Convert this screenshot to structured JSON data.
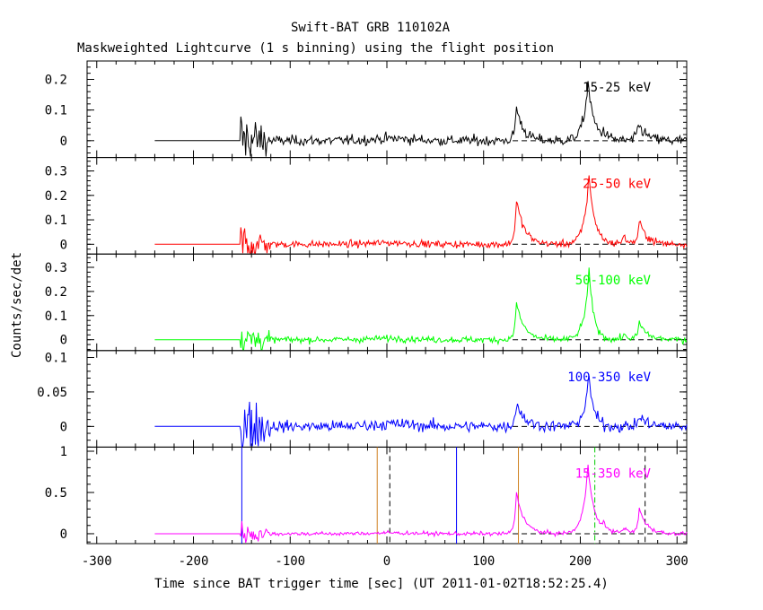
{
  "header": {
    "title": "Swift-BAT GRB 110102A",
    "subtitle": "Maskweighted Lightcurve (1 s binning) using the flight position"
  },
  "xlabel": "Time since BAT trigger time [sec] (UT 2011-01-02T18:52:25.4)",
  "ylabel": "Counts/sec/det",
  "chart_data": {
    "type": "line",
    "xlim": [
      -310,
      310
    ],
    "x_ticks": [
      "-300",
      "-200",
      "-100",
      "0",
      "100",
      "200",
      "300"
    ],
    "data_start": -240,
    "zero_baseline": "dashed from 130 to 310",
    "panels": [
      {
        "label": "15-25 keV",
        "color": "#000000",
        "ylim": [
          -0.055,
          0.26
        ],
        "y_ticks": [
          "0",
          "0.1",
          "0.2"
        ],
        "y_tick_values": [
          0,
          0.1,
          0.2
        ],
        "noise": 0.014,
        "peaks": [
          {
            "t": 134,
            "amp": 0.11,
            "rise": 2,
            "decay": 7
          },
          {
            "t": 208,
            "amp": 0.19,
            "rise": 5,
            "decay": 6
          },
          {
            "t": 224,
            "amp": 0.02,
            "rise": 3,
            "decay": 6
          },
          {
            "t": 260,
            "amp": 0.055,
            "rise": 2,
            "decay": 8
          }
        ]
      },
      {
        "label": "25-50 keV",
        "color": "#ff0000",
        "ylim": [
          -0.04,
          0.355
        ],
        "y_ticks": [
          "0",
          "0.1",
          "0.2",
          "0.3"
        ],
        "y_tick_values": [
          0,
          0.1,
          0.2,
          0.3
        ],
        "noise": 0.012,
        "peaks": [
          {
            "t": 134,
            "amp": 0.18,
            "rise": 2,
            "decay": 8
          },
          {
            "t": 209,
            "amp": 0.28,
            "rise": 5,
            "decay": 6
          },
          {
            "t": 245,
            "amp": 0.03,
            "rise": 3,
            "decay": 5
          },
          {
            "t": 261,
            "amp": 0.09,
            "rise": 2,
            "decay": 8
          }
        ]
      },
      {
        "label": "50-100 keV",
        "color": "#00ff00",
        "ylim": [
          -0.045,
          0.355
        ],
        "y_ticks": [
          "0",
          "0.1",
          "0.2",
          "0.3"
        ],
        "y_tick_values": [
          0,
          0.1,
          0.2,
          0.3
        ],
        "noise": 0.011,
        "peaks": [
          {
            "t": 134,
            "amp": 0.15,
            "rise": 2,
            "decay": 8
          },
          {
            "t": 209,
            "amp": 0.28,
            "rise": 5,
            "decay": 5
          },
          {
            "t": 245,
            "amp": 0.02,
            "rise": 3,
            "decay": 5
          },
          {
            "t": 261,
            "amp": 0.07,
            "rise": 2,
            "decay": 8
          }
        ]
      },
      {
        "label": "100-350 keV",
        "color": "#0000ff",
        "ylim": [
          -0.03,
          0.11
        ],
        "y_ticks": [
          "0",
          "0.05",
          "0.1"
        ],
        "y_tick_values": [
          0,
          0.05,
          0.1
        ],
        "noise": 0.007,
        "peaks": [
          {
            "t": 134,
            "amp": 0.035,
            "rise": 2,
            "decay": 8
          },
          {
            "t": 209,
            "amp": 0.07,
            "rise": 5,
            "decay": 5
          },
          {
            "t": 261,
            "amp": 0.015,
            "rise": 2,
            "decay": 8
          }
        ]
      },
      {
        "label": "15-350 keV",
        "color": "#ff00ff",
        "ylim": [
          -0.12,
          1.05
        ],
        "y_ticks": [
          "0",
          "0.5",
          "1"
        ],
        "y_tick_values": [
          0,
          0.5,
          1
        ],
        "noise": 0.02,
        "peaks": [
          {
            "t": 134,
            "amp": 0.5,
            "rise": 2,
            "decay": 8
          },
          {
            "t": 208,
            "amp": 0.85,
            "rise": 5,
            "decay": 6
          },
          {
            "t": 224,
            "amp": 0.08,
            "rise": 3,
            "decay": 6
          },
          {
            "t": 245,
            "amp": 0.07,
            "rise": 3,
            "decay": 5
          },
          {
            "t": 261,
            "amp": 0.3,
            "rise": 2,
            "decay": 8
          }
        ]
      }
    ],
    "markers": [
      {
        "t": -150,
        "color": "#0000ff",
        "style": "solid"
      },
      {
        "t": -10,
        "color": "#d08020",
        "style": "solid"
      },
      {
        "t": 3,
        "color": "#000000",
        "style": "dashed"
      },
      {
        "t": 72,
        "color": "#0000ff",
        "style": "solid"
      },
      {
        "t": 136,
        "color": "#d08020",
        "style": "solid"
      },
      {
        "t": 215,
        "color": "#00cc00",
        "style": "dashdot"
      },
      {
        "t": 267,
        "color": "#000000",
        "style": "dashed"
      }
    ]
  }
}
